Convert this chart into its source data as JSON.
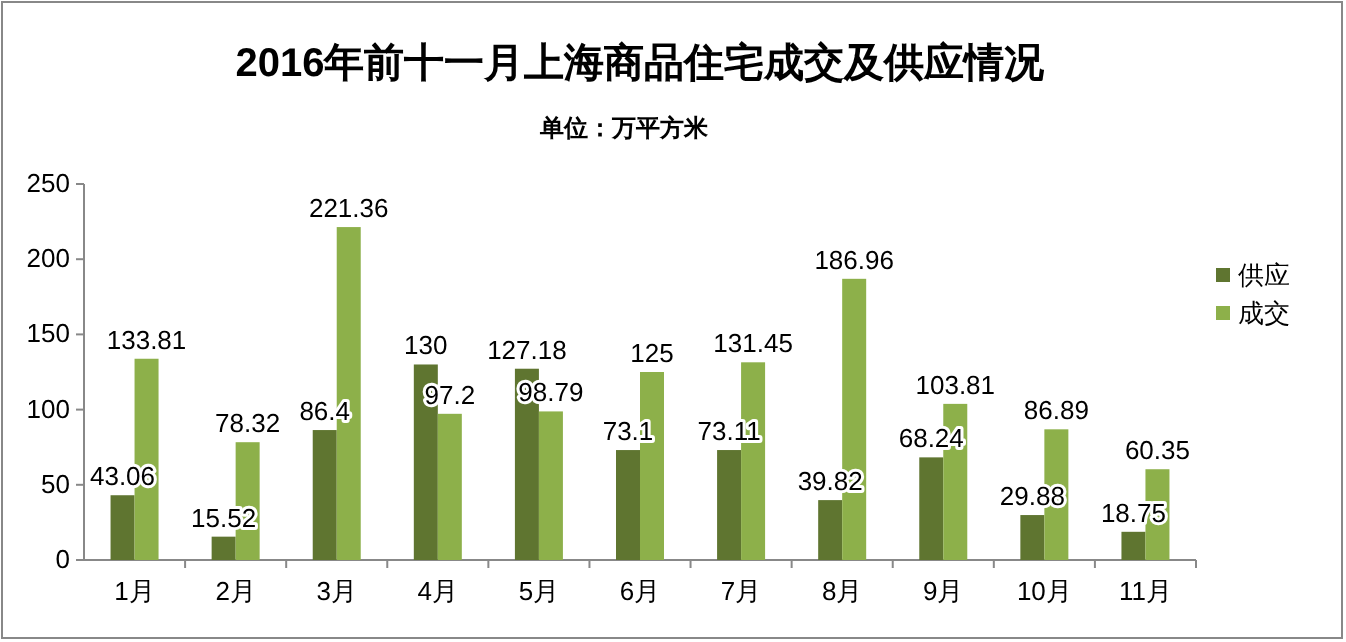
{
  "chart_data": {
    "type": "bar",
    "title": "2016年前十一月上海商品住宅成交及供应情况",
    "subtitle": "单位：万平方米",
    "categories": [
      "1月",
      "2月",
      "3月",
      "4月",
      "5月",
      "6月",
      "7月",
      "8月",
      "9月",
      "10月",
      "11月"
    ],
    "series": [
      {
        "name": "供应",
        "color": "#5f7530",
        "values": [
          43.06,
          15.52,
          86.4,
          130,
          127.18,
          73.1,
          73.11,
          39.82,
          68.24,
          29.88,
          18.75
        ]
      },
      {
        "name": "成交",
        "color": "#8db04a",
        "values": [
          133.81,
          78.32,
          221.36,
          97.2,
          98.79,
          125,
          131.45,
          186.96,
          103.81,
          86.89,
          60.35
        ]
      }
    ],
    "ylim": [
      0,
      250
    ],
    "yticks": [
      0,
      50,
      100,
      150,
      200,
      250
    ],
    "data_labels": true,
    "legend": "right"
  }
}
